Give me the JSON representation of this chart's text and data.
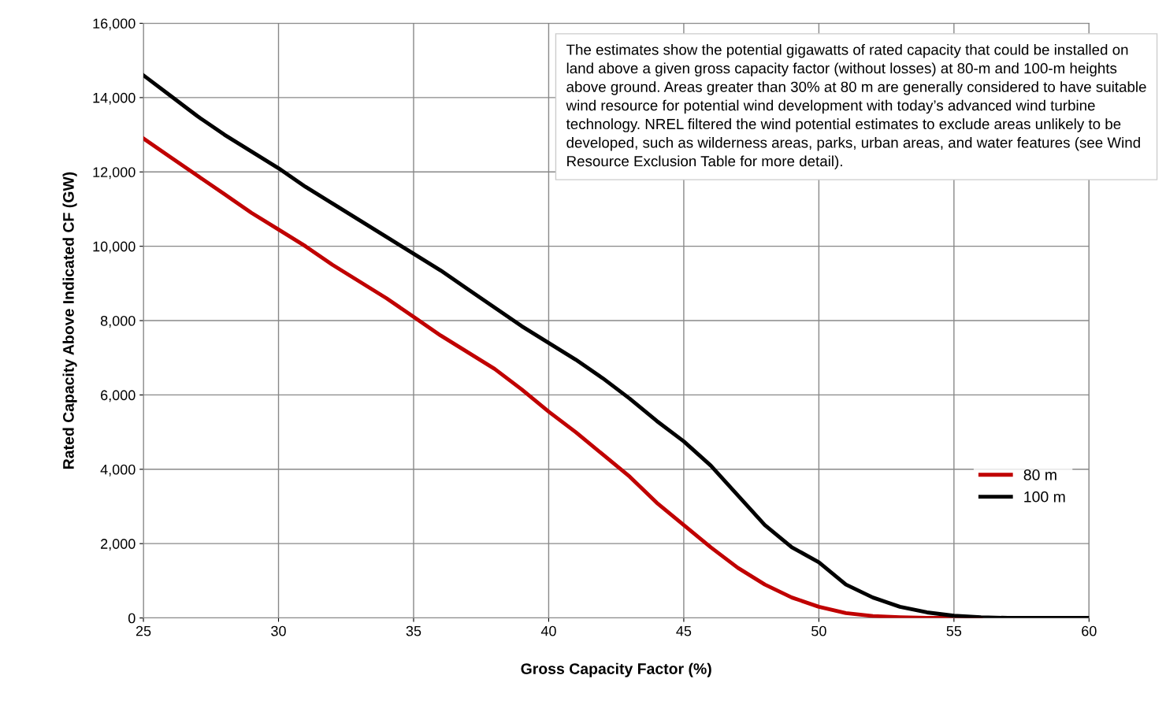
{
  "chart_data": {
    "type": "line",
    "xlabel": "Gross Capacity Factor (%)",
    "ylabel": "Rated Capacity Above Indicated CF (GW)",
    "annotations": [
      "The estimates show the potential gigawatts of rated capacity that could be installed on land above a given gross capacity factor (without losses) at 80-m and 100-m heights above ground. Areas greater than 30% at 80 m are generally considered to have suitable wind resource for potential wind development with today’s advanced wind turbine technology. NREL filtered the wind potential estimates to exclude areas unlikely to be developed, such as wilderness areas, parks, urban areas, and water features (see Wind Resource Exclusion Table for more detail)."
    ],
    "x": [
      25,
      26,
      27,
      28,
      29,
      30,
      31,
      32,
      33,
      34,
      35,
      36,
      37,
      38,
      39,
      40,
      41,
      42,
      43,
      44,
      45,
      46,
      47,
      48,
      49,
      50,
      51,
      52,
      53,
      54,
      55,
      56,
      57,
      58,
      59,
      60
    ],
    "series": [
      {
        "name": "80 m",
        "color": "#c00000",
        "values": [
          12900,
          12400,
          11900,
          11400,
          10900,
          10450,
          10000,
          9500,
          9050,
          8600,
          8100,
          7600,
          7150,
          6700,
          6150,
          5550,
          5000,
          4400,
          3800,
          3100,
          2500,
          1900,
          1350,
          900,
          550,
          300,
          130,
          50,
          20,
          0,
          0,
          0,
          null,
          null,
          null,
          null
        ]
      },
      {
        "name": "100 m",
        "color": "#000000",
        "values": [
          14600,
          14050,
          13500,
          13000,
          12550,
          12100,
          11600,
          11150,
          10700,
          10250,
          9800,
          9350,
          8850,
          8350,
          7850,
          7400,
          6950,
          6450,
          5900,
          5300,
          4750,
          4100,
          3300,
          2500,
          1900,
          1500,
          900,
          550,
          300,
          150,
          60,
          20,
          0,
          0,
          0,
          0
        ]
      }
    ],
    "xlim": [
      25,
      60
    ],
    "xticks": [
      25,
      30,
      35,
      40,
      45,
      50,
      55,
      60
    ],
    "ylim": [
      0,
      16000
    ],
    "yticks": [
      {
        "value": 0,
        "label": "0"
      },
      {
        "value": 2000,
        "label": "2,000"
      },
      {
        "value": 4000,
        "label": "4,000"
      },
      {
        "value": 6000,
        "label": "6,000"
      },
      {
        "value": 8000,
        "label": "8,000"
      },
      {
        "value": 10000,
        "label": "10,000"
      },
      {
        "value": 12000,
        "label": "12,000"
      },
      {
        "value": 14000,
        "label": "14,000"
      },
      {
        "value": 16000,
        "label": "16,000"
      }
    ],
    "grid": true,
    "legend": "right",
    "marker": "none",
    "line_style": "solid"
  }
}
